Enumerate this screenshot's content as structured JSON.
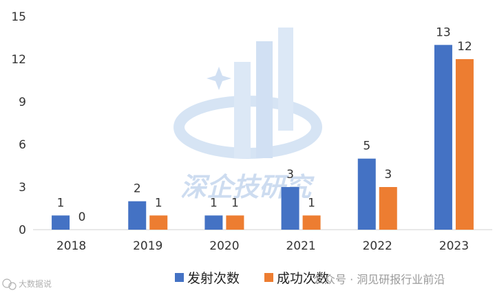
{
  "chart_data": {
    "type": "bar",
    "categories": [
      "2018",
      "2019",
      "2020",
      "2021",
      "2022",
      "2023"
    ],
    "series": [
      {
        "name": "发射次数",
        "color": "#4472c4",
        "values": [
          1,
          2,
          1,
          3,
          5,
          13
        ]
      },
      {
        "name": "成功次数",
        "color": "#ed7d31",
        "values": [
          0,
          1,
          1,
          1,
          3,
          12
        ]
      }
    ],
    "ylim": [
      0,
      15
    ],
    "yticks": [
      0,
      3,
      6,
      9,
      12,
      15
    ],
    "grid": false,
    "legend": "bottom-center",
    "title": "",
    "xlabel": "",
    "ylabel": ""
  },
  "watermark": {
    "text": "深企技研究",
    "icon": "building-logo-icon"
  },
  "footer": {
    "left_text": "大数据说",
    "right_text": "公众号 · 洞见研报行业前沿",
    "icon": "wechat-icon"
  }
}
